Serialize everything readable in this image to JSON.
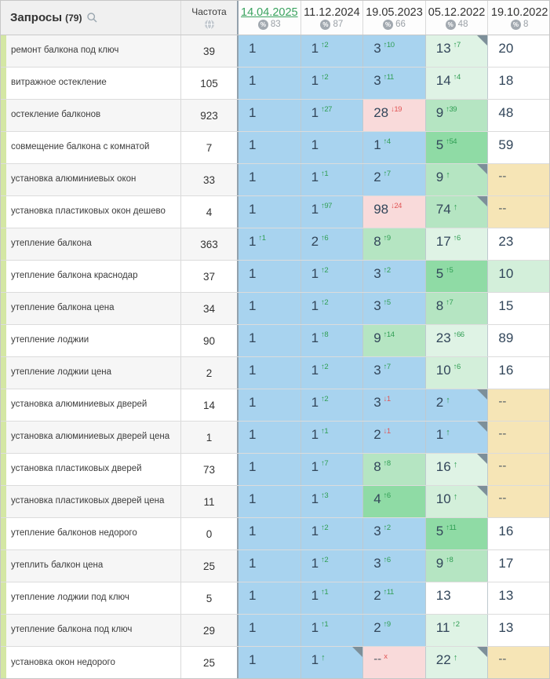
{
  "header": {
    "queries_label": "Запросы",
    "queries_count": "(79)",
    "frequency_label": "Частота",
    "columns": [
      {
        "date": "14.04.2025",
        "percent": "83",
        "active": true
      },
      {
        "date": "11.12.2024",
        "percent": "87",
        "active": false
      },
      {
        "date": "19.05.2023",
        "percent": "66",
        "active": false
      },
      {
        "date": "05.12.2022",
        "percent": "48",
        "active": false
      },
      {
        "date": "19.10.2022",
        "percent": "8",
        "active": false
      }
    ]
  },
  "icons": {
    "search": "search-icon",
    "globe": "globe-icon",
    "percent_char": "%",
    "up_arrow": "↑",
    "down_arrow": "↓",
    "dropped_mark": "x"
  },
  "palette": {
    "blue": "#a8d3ef",
    "green_strong": "#8fdba5",
    "green_mid": "#b5e5c2",
    "green_light": "#d3efda",
    "green_pale": "#dff3e5",
    "white": "#ffffff",
    "tan": "#f6e5b6",
    "pink": "#f9dada",
    "up": "#2f9e53",
    "down": "#e05555",
    "strip": "#d4e7a4",
    "active_date": "#3aa35f"
  },
  "rows": [
    {
      "keyword": "ремонт балкона под ключ",
      "frequency": "39",
      "cells": [
        {
          "value": "1",
          "bg": "blue"
        },
        {
          "value": "1",
          "change": "2",
          "dir": "up",
          "bg": "blue"
        },
        {
          "value": "3",
          "change": "10",
          "dir": "up",
          "bg": "blue"
        },
        {
          "value": "13",
          "change": "7",
          "dir": "up",
          "bg": "green_pale",
          "corner": true
        },
        {
          "value": "20",
          "bg": "white"
        }
      ]
    },
    {
      "keyword": "витражное остекление",
      "frequency": "105",
      "cells": [
        {
          "value": "1",
          "bg": "blue"
        },
        {
          "value": "1",
          "change": "2",
          "dir": "up",
          "bg": "blue"
        },
        {
          "value": "3",
          "change": "11",
          "dir": "up",
          "bg": "blue"
        },
        {
          "value": "14",
          "change": "4",
          "dir": "up",
          "bg": "green_pale"
        },
        {
          "value": "18",
          "bg": "white"
        }
      ]
    },
    {
      "keyword": "остекление балконов",
      "frequency": "923",
      "cells": [
        {
          "value": "1",
          "bg": "blue"
        },
        {
          "value": "1",
          "change": "27",
          "dir": "up",
          "bg": "blue"
        },
        {
          "value": "28",
          "change": "19",
          "dir": "down",
          "bg": "pink"
        },
        {
          "value": "9",
          "change": "39",
          "dir": "up",
          "bg": "green_mid"
        },
        {
          "value": "48",
          "bg": "white"
        }
      ]
    },
    {
      "keyword": "совмещение балкона с комнатой",
      "frequency": "7",
      "cells": [
        {
          "value": "1",
          "bg": "blue"
        },
        {
          "value": "1",
          "bg": "blue"
        },
        {
          "value": "1",
          "change": "4",
          "dir": "up",
          "bg": "blue"
        },
        {
          "value": "5",
          "change": "54",
          "dir": "up",
          "bg": "green_strong"
        },
        {
          "value": "59",
          "bg": "white"
        }
      ]
    },
    {
      "keyword": "установка алюминиевых окон",
      "frequency": "33",
      "cells": [
        {
          "value": "1",
          "bg": "blue"
        },
        {
          "value": "1",
          "change": "1",
          "dir": "up",
          "bg": "blue"
        },
        {
          "value": "2",
          "change": "7",
          "dir": "up",
          "bg": "blue"
        },
        {
          "value": "9",
          "change": "",
          "dir": "up",
          "bg": "green_mid",
          "corner": true
        },
        {
          "value": "--",
          "bg": "tan"
        }
      ]
    },
    {
      "keyword": "установка пластиковых окон дешево",
      "frequency": "4",
      "cells": [
        {
          "value": "1",
          "bg": "blue"
        },
        {
          "value": "1",
          "change": "97",
          "dir": "up",
          "bg": "blue"
        },
        {
          "value": "98",
          "change": "24",
          "dir": "down",
          "bg": "pink"
        },
        {
          "value": "74",
          "change": "",
          "dir": "up",
          "bg": "green_mid",
          "corner": true
        },
        {
          "value": "--",
          "bg": "tan"
        }
      ]
    },
    {
      "keyword": "утепление балкона",
      "frequency": "363",
      "cells": [
        {
          "value": "1",
          "change": "1",
          "dir": "up",
          "bg": "blue"
        },
        {
          "value": "2",
          "change": "6",
          "dir": "up",
          "bg": "blue"
        },
        {
          "value": "8",
          "change": "9",
          "dir": "up",
          "bg": "green_mid"
        },
        {
          "value": "17",
          "change": "6",
          "dir": "up",
          "bg": "green_pale"
        },
        {
          "value": "23",
          "bg": "white"
        }
      ]
    },
    {
      "keyword": "утепление балкона краснодар",
      "frequency": "37",
      "cells": [
        {
          "value": "1",
          "bg": "blue"
        },
        {
          "value": "1",
          "change": "2",
          "dir": "up",
          "bg": "blue"
        },
        {
          "value": "3",
          "change": "2",
          "dir": "up",
          "bg": "blue"
        },
        {
          "value": "5",
          "change": "5",
          "dir": "up",
          "bg": "green_strong"
        },
        {
          "value": "10",
          "bg": "green_light"
        }
      ]
    },
    {
      "keyword": "утепление балкона цена",
      "frequency": "34",
      "cells": [
        {
          "value": "1",
          "bg": "blue"
        },
        {
          "value": "1",
          "change": "2",
          "dir": "up",
          "bg": "blue"
        },
        {
          "value": "3",
          "change": "5",
          "dir": "up",
          "bg": "blue"
        },
        {
          "value": "8",
          "change": "7",
          "dir": "up",
          "bg": "green_mid"
        },
        {
          "value": "15",
          "bg": "white"
        }
      ]
    },
    {
      "keyword": "утепление лоджии",
      "frequency": "90",
      "cells": [
        {
          "value": "1",
          "bg": "blue"
        },
        {
          "value": "1",
          "change": "8",
          "dir": "up",
          "bg": "blue"
        },
        {
          "value": "9",
          "change": "14",
          "dir": "up",
          "bg": "green_mid"
        },
        {
          "value": "23",
          "change": "66",
          "dir": "up",
          "bg": "green_pale"
        },
        {
          "value": "89",
          "bg": "white"
        }
      ]
    },
    {
      "keyword": "утепление лоджии цена",
      "frequency": "2",
      "cells": [
        {
          "value": "1",
          "bg": "blue"
        },
        {
          "value": "1",
          "change": "2",
          "dir": "up",
          "bg": "blue"
        },
        {
          "value": "3",
          "change": "7",
          "dir": "up",
          "bg": "blue"
        },
        {
          "value": "10",
          "change": "6",
          "dir": "up",
          "bg": "green_light"
        },
        {
          "value": "16",
          "bg": "white"
        }
      ]
    },
    {
      "keyword": "установка алюминиевых дверей",
      "frequency": "14",
      "cells": [
        {
          "value": "1",
          "bg": "blue"
        },
        {
          "value": "1",
          "change": "2",
          "dir": "up",
          "bg": "blue"
        },
        {
          "value": "3",
          "change": "1",
          "dir": "down",
          "bg": "blue"
        },
        {
          "value": "2",
          "change": "",
          "dir": "up",
          "bg": "blue",
          "corner": true
        },
        {
          "value": "--",
          "bg": "tan"
        }
      ]
    },
    {
      "keyword": "установка алюминиевых дверей цена",
      "frequency": "1",
      "cells": [
        {
          "value": "1",
          "bg": "blue"
        },
        {
          "value": "1",
          "change": "1",
          "dir": "up",
          "bg": "blue"
        },
        {
          "value": "2",
          "change": "1",
          "dir": "down",
          "bg": "blue"
        },
        {
          "value": "1",
          "change": "",
          "dir": "up",
          "bg": "blue",
          "corner": true
        },
        {
          "value": "--",
          "bg": "tan"
        }
      ]
    },
    {
      "keyword": "установка пластиковых дверей",
      "frequency": "73",
      "cells": [
        {
          "value": "1",
          "bg": "blue"
        },
        {
          "value": "1",
          "change": "7",
          "dir": "up",
          "bg": "blue"
        },
        {
          "value": "8",
          "change": "8",
          "dir": "up",
          "bg": "green_mid"
        },
        {
          "value": "16",
          "change": "",
          "dir": "up",
          "bg": "green_pale",
          "corner": true
        },
        {
          "value": "--",
          "bg": "tan"
        }
      ]
    },
    {
      "keyword": "установка пластиковых дверей цена",
      "frequency": "11",
      "cells": [
        {
          "value": "1",
          "bg": "blue"
        },
        {
          "value": "1",
          "change": "3",
          "dir": "up",
          "bg": "blue"
        },
        {
          "value": "4",
          "change": "6",
          "dir": "up",
          "bg": "green_strong"
        },
        {
          "value": "10",
          "change": "",
          "dir": "up",
          "bg": "green_light",
          "corner": true
        },
        {
          "value": "--",
          "bg": "tan"
        }
      ]
    },
    {
      "keyword": "утепление балконов недорого",
      "frequency": "0",
      "cells": [
        {
          "value": "1",
          "bg": "blue"
        },
        {
          "value": "1",
          "change": "2",
          "dir": "up",
          "bg": "blue"
        },
        {
          "value": "3",
          "change": "2",
          "dir": "up",
          "bg": "blue"
        },
        {
          "value": "5",
          "change": "11",
          "dir": "up",
          "bg": "green_strong"
        },
        {
          "value": "16",
          "bg": "white"
        }
      ]
    },
    {
      "keyword": "утеплить балкон цена",
      "frequency": "25",
      "cells": [
        {
          "value": "1",
          "bg": "blue"
        },
        {
          "value": "1",
          "change": "2",
          "dir": "up",
          "bg": "blue"
        },
        {
          "value": "3",
          "change": "6",
          "dir": "up",
          "bg": "blue"
        },
        {
          "value": "9",
          "change": "8",
          "dir": "up",
          "bg": "green_mid"
        },
        {
          "value": "17",
          "bg": "white"
        }
      ]
    },
    {
      "keyword": "утепление лоджии под ключ",
      "frequency": "5",
      "cells": [
        {
          "value": "1",
          "bg": "blue"
        },
        {
          "value": "1",
          "change": "1",
          "dir": "up",
          "bg": "blue"
        },
        {
          "value": "2",
          "change": "11",
          "dir": "up",
          "bg": "blue"
        },
        {
          "value": "13",
          "bg": "white"
        },
        {
          "value": "13",
          "bg": "white"
        }
      ]
    },
    {
      "keyword": "утепление балкона под ключ",
      "frequency": "29",
      "cells": [
        {
          "value": "1",
          "bg": "blue"
        },
        {
          "value": "1",
          "change": "1",
          "dir": "up",
          "bg": "blue"
        },
        {
          "value": "2",
          "change": "9",
          "dir": "up",
          "bg": "blue"
        },
        {
          "value": "11",
          "change": "2",
          "dir": "up",
          "bg": "green_pale"
        },
        {
          "value": "13",
          "bg": "white"
        }
      ]
    },
    {
      "keyword": "установка окон недорого",
      "frequency": "25",
      "cells": [
        {
          "value": "1",
          "bg": "blue"
        },
        {
          "value": "1",
          "change": "",
          "dir": "up",
          "bg": "blue",
          "corner": true
        },
        {
          "value": "--",
          "change": "x",
          "dir": "down",
          "bg": "pink"
        },
        {
          "value": "22",
          "change": "",
          "dir": "up",
          "bg": "green_pale",
          "corner": true
        },
        {
          "value": "--",
          "bg": "tan"
        }
      ]
    }
  ]
}
